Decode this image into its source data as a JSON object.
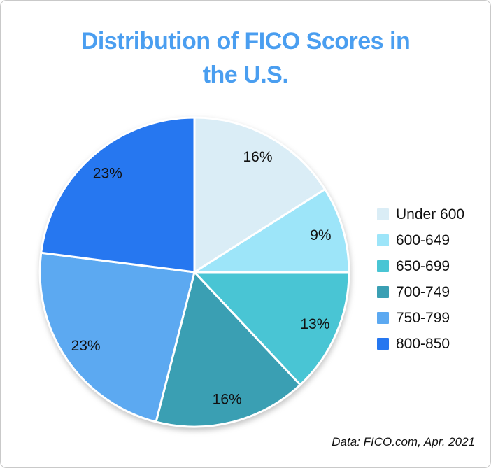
{
  "title_lines": [
    "Distribution of FICO Scores in",
    "the U.S."
  ],
  "title_color": "#4a9ef0",
  "footer": {
    "source": "Data: FICO.com, Apr. 2021"
  },
  "chart_data": {
    "type": "pie",
    "title": "Distribution of FICO Scores in the U.S.",
    "categories": [
      "Under 600",
      "600-649",
      "650-699",
      "700-749",
      "750-799",
      "800-850"
    ],
    "values": [
      16,
      9,
      13,
      16,
      23,
      23
    ],
    "slice_labels": [
      "16%",
      "9%",
      "13%",
      "16%",
      "23%",
      "23%"
    ],
    "colors": [
      "#daedf6",
      "#9de5f9",
      "#49c5d4",
      "#3a9fb3",
      "#5ca9f1",
      "#2677f0"
    ],
    "start_angle_deg": 0,
    "direction": "clockwise",
    "legend_position": "right",
    "label_color": "#111111",
    "slice_border_color": "#ffffff",
    "source_note": "Data: FICO.com, Apr. 2021"
  }
}
